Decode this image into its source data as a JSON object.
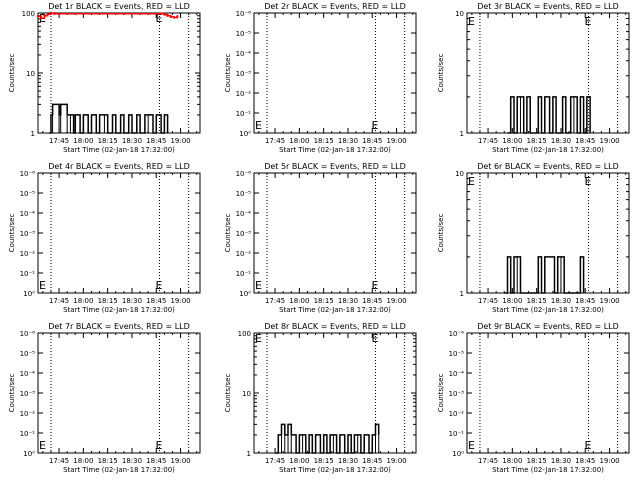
{
  "chart_data": [
    {
      "type": "line",
      "title": "Det 1r BLACK = Events, RED = LLD",
      "xlabel": "Start Time (02-Jan-18 17:32:00)",
      "ylabel": "Counts/sec",
      "log_y": true,
      "ylim": [
        1,
        100
      ],
      "y_ticks": [
        "1",
        "10",
        "100"
      ],
      "x_ticks": [
        "17:45",
        "18:00",
        "18:15",
        "18:30",
        "18:45",
        "19:00"
      ],
      "markers": {
        "start_label": "E",
        "end_label": "E"
      },
      "series": [
        {
          "name": "Events",
          "color": "#000000",
          "x": [
            "17:39",
            "17:40",
            "17:41",
            "17:45",
            "17:46",
            "17:50",
            "17:52",
            "17:54",
            "17:55",
            "17:58",
            "18:00",
            "18:03",
            "18:05",
            "18:08",
            "18:10",
            "18:13",
            "18:15",
            "18:18",
            "18:20",
            "18:23",
            "18:25",
            "18:28",
            "18:30",
            "18:33",
            "18:35",
            "18:38",
            "18:40",
            "18:43",
            "18:45",
            "18:48",
            "18:50",
            "18:52"
          ],
          "values": [
            1,
            2,
            3,
            2,
            3,
            2,
            2,
            1,
            2,
            1,
            2,
            1,
            2,
            1,
            2,
            2,
            1,
            2,
            1,
            2,
            1,
            2,
            1,
            2,
            1,
            2,
            2,
            1,
            2,
            1,
            2,
            1
          ]
        },
        {
          "name": "LLD",
          "color": "#ff0000",
          "x": [
            "17:32",
            "17:34",
            "17:36",
            "17:38",
            "17:40",
            "17:42",
            "18:48",
            "18:50",
            "18:52",
            "18:54",
            "18:56",
            "18:58"
          ],
          "values": [
            88,
            82,
            90,
            95,
            100,
            97,
            98,
            94,
            90,
            86,
            84,
            88
          ]
        }
      ]
    },
    {
      "type": "line",
      "title": "Det 2r BLACK = Events, RED = LLD",
      "xlabel": "Start Time (02-Jan-18 17:32:00)",
      "ylabel": "Counts/sec",
      "log_y": true,
      "y_ticks": [
        "10⁰",
        "10⁻¹",
        "10⁻²",
        "10⁻³",
        "10⁻⁴",
        "10⁻⁵",
        "10⁻⁶"
      ],
      "x_ticks": [
        "17:45",
        "18:00",
        "18:15",
        "18:30",
        "18:45",
        "19:00"
      ],
      "markers": {
        "start_label": "E",
        "end_label": "E"
      },
      "series": []
    },
    {
      "type": "line",
      "title": "Det 3r BLACK = Events, RED = LLD",
      "xlabel": "Start Time (02-Jan-18 17:32:00)",
      "ylabel": "Counts/sec",
      "log_y": true,
      "ylim": [
        1,
        10
      ],
      "y_ticks": [
        "1",
        "10"
      ],
      "x_ticks": [
        "17:45",
        "18:00",
        "18:15",
        "18:30",
        "18:45",
        "19:00"
      ],
      "markers": {
        "start_label": "E",
        "end_label": "E"
      },
      "series": [
        {
          "name": "Events",
          "color": "#000000",
          "x": [
            "17:57",
            "17:59",
            "18:01",
            "18:03",
            "18:05",
            "18:07",
            "18:09",
            "18:11",
            "18:14",
            "18:16",
            "18:18",
            "18:20",
            "18:23",
            "18:25",
            "18:27",
            "18:29",
            "18:31",
            "18:33",
            "18:36",
            "18:38",
            "18:40",
            "18:42",
            "18:44",
            "18:46",
            "18:48"
          ],
          "values": [
            1,
            2,
            1,
            2,
            2,
            1,
            2,
            1,
            1,
            2,
            1,
            2,
            1,
            2,
            1,
            1,
            2,
            1,
            2,
            2,
            1,
            2,
            1,
            2,
            1
          ]
        }
      ]
    },
    {
      "type": "line",
      "title": "Det 4r BLACK = Events, RED = LLD",
      "xlabel": "Start Time (02-Jan-18 17:32:00)",
      "ylabel": "Counts/sec",
      "log_y": true,
      "y_ticks": [
        "10⁰",
        "10⁻¹",
        "10⁻²",
        "10⁻³",
        "10⁻⁴",
        "10⁻⁵",
        "10⁻⁶"
      ],
      "x_ticks": [
        "17:45",
        "18:00",
        "18:15",
        "18:30",
        "18:45",
        "19:00"
      ],
      "markers": {
        "start_label": "E",
        "end_label": "E"
      },
      "series": []
    },
    {
      "type": "line",
      "title": "Det 5r BLACK = Events, RED = LLD",
      "xlabel": "Start Time (02-Jan-18 17:32:00)",
      "ylabel": "Counts/sec",
      "log_y": true,
      "y_ticks": [
        "10⁰",
        "10⁻¹",
        "10⁻²",
        "10⁻³",
        "10⁻⁴",
        "10⁻⁵",
        "10⁻⁶"
      ],
      "x_ticks": [
        "17:45",
        "18:00",
        "18:15",
        "18:30",
        "18:45",
        "19:00"
      ],
      "markers": {
        "start_label": "E",
        "end_label": "E"
      },
      "series": []
    },
    {
      "type": "line",
      "title": "Det 6r BLACK = Events, RED = LLD",
      "xlabel": "Start Time (02-Jan-18 17:32:00)",
      "ylabel": "Counts/sec",
      "log_y": true,
      "ylim": [
        1,
        10
      ],
      "y_ticks": [
        "1",
        "10"
      ],
      "x_ticks": [
        "17:45",
        "18:00",
        "18:15",
        "18:30",
        "18:45",
        "19:00"
      ],
      "markers": {
        "start_label": "E",
        "end_label": "E"
      },
      "series": [
        {
          "name": "Events",
          "color": "#000000",
          "x": [
            "17:55",
            "17:57",
            "17:59",
            "18:01",
            "18:03",
            "18:05",
            "18:14",
            "18:16",
            "18:18",
            "18:20",
            "18:26",
            "18:28",
            "18:30",
            "18:32",
            "18:40",
            "18:42",
            "18:44"
          ],
          "values": [
            1,
            2,
            1,
            2,
            2,
            1,
            1,
            2,
            1,
            2,
            1,
            2,
            2,
            1,
            1,
            2,
            1
          ]
        }
      ]
    },
    {
      "type": "line",
      "title": "Det 7r BLACK = Events, RED = LLD",
      "xlabel": "Start Time (02-Jan-18 17:32:00)",
      "ylabel": "Counts/sec",
      "log_y": true,
      "y_ticks": [
        "10⁰",
        "10⁻¹",
        "10⁻²",
        "10⁻³",
        "10⁻⁴",
        "10⁻⁵",
        "10⁻⁶"
      ],
      "x_ticks": [
        "17:45",
        "18:00",
        "18:15",
        "18:30",
        "18:45",
        "19:00"
      ],
      "markers": {
        "start_label": "E",
        "end_label": "E"
      },
      "series": []
    },
    {
      "type": "line",
      "title": "Det 8r BLACK = Events, RED = LLD",
      "xlabel": "Start Time (02-Jan-18 17:32:00)",
      "ylabel": "Counts/sec",
      "log_y": true,
      "ylim": [
        1,
        100
      ],
      "y_ticks": [
        "1",
        "10",
        "100"
      ],
      "x_ticks": [
        "17:45",
        "18:00",
        "18:15",
        "18:30",
        "18:45",
        "19:00"
      ],
      "markers": {
        "start_label": "E",
        "end_label": "E"
      },
      "series": [
        {
          "name": "Events",
          "color": "#000000",
          "x": [
            "17:45",
            "17:47",
            "17:49",
            "17:51",
            "17:53",
            "17:55",
            "17:58",
            "18:00",
            "18:02",
            "18:04",
            "18:06",
            "18:08",
            "18:10",
            "18:13",
            "18:15",
            "18:17",
            "18:19",
            "18:21",
            "18:23",
            "18:25",
            "18:28",
            "18:30",
            "18:32",
            "18:34",
            "18:36",
            "18:38",
            "18:40",
            "18:43",
            "18:45",
            "18:47",
            "18:49"
          ],
          "values": [
            1,
            2,
            3,
            2,
            3,
            2,
            1,
            2,
            2,
            1,
            2,
            1,
            2,
            1,
            2,
            1,
            2,
            2,
            1,
            2,
            1,
            2,
            1,
            2,
            2,
            1,
            2,
            1,
            2,
            3,
            2
          ]
        }
      ]
    },
    {
      "type": "line",
      "title": "Det 9r BLACK = Events, RED = LLD",
      "xlabel": "Start Time (02-Jan-18 17:32:00)",
      "ylabel": "Counts/sec",
      "log_y": true,
      "y_ticks": [
        "10⁰",
        "10⁻¹",
        "10⁻²",
        "10⁻³",
        "10⁻⁴",
        "10⁻⁵",
        "10⁻⁶"
      ],
      "x_ticks": [
        "17:45",
        "18:00",
        "18:15",
        "18:30",
        "18:45",
        "19:00"
      ],
      "markers": {
        "start_label": "E",
        "end_label": "E"
      },
      "series": []
    }
  ]
}
